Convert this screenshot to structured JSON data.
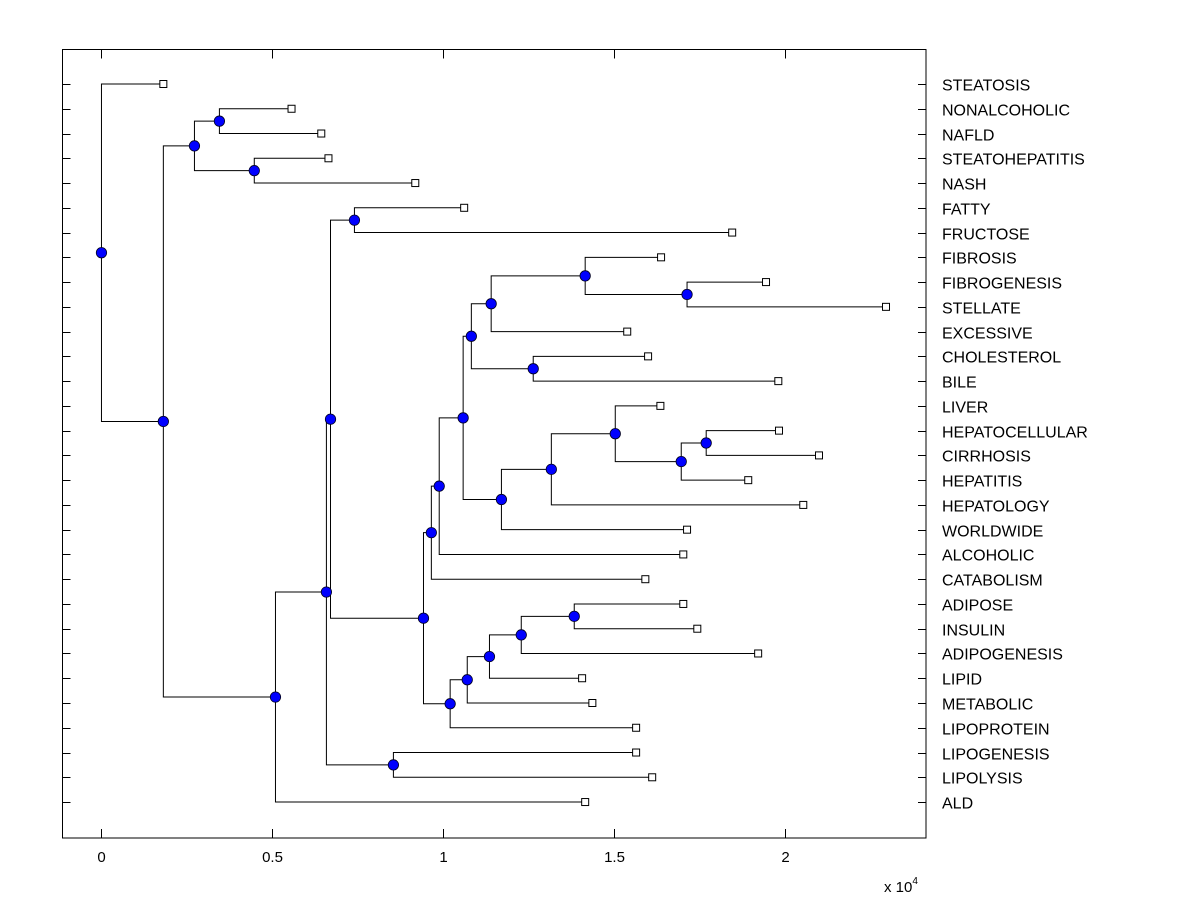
{
  "chart_data": {
    "type": "dendrogram",
    "title": "",
    "xlabel": "",
    "ylabel": "",
    "x_multiplier_label": "x 10",
    "x_multiplier_exponent": "4",
    "xlim": [
      -0.114,
      2.412
    ],
    "xticks": [
      0,
      0.5,
      1,
      1.5,
      2
    ],
    "xtick_labels": [
      "0",
      "0.5",
      "1",
      "1.5",
      "2"
    ],
    "orientation": "left-to-right, labels on right",
    "colors": {
      "node": "#0000ff",
      "line": "#000000",
      "leaf_marker": "#ffffff"
    },
    "leaves": [
      {
        "id": "L0",
        "label": "STEATOSIS",
        "x": 0.181
      },
      {
        "id": "L1",
        "label": "NONALCOHOLIC",
        "x": 0.556
      },
      {
        "id": "L2",
        "label": "NAFLD",
        "x": 0.643
      },
      {
        "id": "L3",
        "label": "STEATOHEPATITIS",
        "x": 0.664
      },
      {
        "id": "L4",
        "label": "NASH",
        "x": 0.918
      },
      {
        "id": "L5",
        "label": "FATTY",
        "x": 1.061
      },
      {
        "id": "L6",
        "label": "FRUCTOSE",
        "x": 1.845
      },
      {
        "id": "L7",
        "label": "FIBROSIS",
        "x": 1.637
      },
      {
        "id": "L8",
        "label": "FIBROGENESIS",
        "x": 1.944
      },
      {
        "id": "L9",
        "label": "STELLATE",
        "x": 2.295
      },
      {
        "id": "L10",
        "label": "EXCESSIVE",
        "x": 1.538
      },
      {
        "id": "L11",
        "label": "CHOLESTEROL",
        "x": 1.599
      },
      {
        "id": "L12",
        "label": "BILE",
        "x": 1.98
      },
      {
        "id": "L13",
        "label": "LIVER",
        "x": 1.635
      },
      {
        "id": "L14",
        "label": "HEPATOCELLULAR",
        "x": 1.982
      },
      {
        "id": "L15",
        "label": "CIRRHOSIS",
        "x": 2.099
      },
      {
        "id": "L16",
        "label": "HEPATITIS",
        "x": 1.892
      },
      {
        "id": "L17",
        "label": "HEPATOLOGY",
        "x": 2.053
      },
      {
        "id": "L18",
        "label": "WORLDWIDE",
        "x": 1.713
      },
      {
        "id": "L19",
        "label": "ALCOHOLIC",
        "x": 1.702
      },
      {
        "id": "L20",
        "label": "CATABOLISM",
        "x": 1.591
      },
      {
        "id": "L21",
        "label": "ADIPOSE",
        "x": 1.702
      },
      {
        "id": "L22",
        "label": "INSULIN",
        "x": 1.743
      },
      {
        "id": "L23",
        "label": "ADIPOGENESIS",
        "x": 1.921
      },
      {
        "id": "L24",
        "label": "LIPID",
        "x": 1.406
      },
      {
        "id": "L25",
        "label": "METABOLIC",
        "x": 1.436
      },
      {
        "id": "L26",
        "label": "LIPOPROTEIN",
        "x": 1.564
      },
      {
        "id": "L27",
        "label": "LIPOGENESIS",
        "x": 1.564
      },
      {
        "id": "L28",
        "label": "LIPOLYSIS",
        "x": 1.611
      },
      {
        "id": "L29",
        "label": "ALD",
        "x": 1.415
      }
    ],
    "nodes": [
      {
        "id": "N_root",
        "x": 0.0,
        "children": [
          "L0",
          "N1"
        ]
      },
      {
        "id": "N1",
        "x": 0.181,
        "children": [
          "N2",
          "N5"
        ]
      },
      {
        "id": "N2",
        "x": 0.272,
        "children": [
          "N3",
          "N4"
        ]
      },
      {
        "id": "N3",
        "x": 0.345,
        "children": [
          "L1",
          "L2"
        ]
      },
      {
        "id": "N4",
        "x": 0.447,
        "children": [
          "L3",
          "L4"
        ]
      },
      {
        "id": "N5",
        "x": 0.509,
        "children": [
          "N6",
          "L29"
        ]
      },
      {
        "id": "N6",
        "x": 0.658,
        "children": [
          "N7",
          "N9"
        ]
      },
      {
        "id": "N7",
        "x": 0.67,
        "children": [
          "N8",
          "N10"
        ]
      },
      {
        "id": "N8",
        "x": 0.74,
        "children": [
          "L5",
          "L6"
        ]
      },
      {
        "id": "N9",
        "x": 0.854,
        "children": [
          "L27",
          "L28"
        ]
      },
      {
        "id": "N10",
        "x": 0.942,
        "children": [
          "N11",
          "N24"
        ]
      },
      {
        "id": "N11",
        "x": 0.965,
        "children": [
          "N12",
          "L20"
        ]
      },
      {
        "id": "N12",
        "x": 0.988,
        "children": [
          "N13",
          "L19"
        ]
      },
      {
        "id": "N13",
        "x": 1.058,
        "children": [
          "N14",
          "N19"
        ]
      },
      {
        "id": "N14",
        "x": 1.082,
        "children": [
          "N15",
          "N18"
        ]
      },
      {
        "id": "N15",
        "x": 1.14,
        "children": [
          "N16",
          "L10"
        ]
      },
      {
        "id": "N16",
        "x": 1.415,
        "children": [
          "L7",
          "N17"
        ]
      },
      {
        "id": "N17",
        "x": 1.713,
        "children": [
          "L8",
          "L9"
        ]
      },
      {
        "id": "N18",
        "x": 1.263,
        "children": [
          "L11",
          "L12"
        ]
      },
      {
        "id": "N19",
        "x": 1.17,
        "children": [
          "N20",
          "L18"
        ]
      },
      {
        "id": "N20",
        "x": 1.316,
        "children": [
          "N21",
          "L17"
        ]
      },
      {
        "id": "N21",
        "x": 1.503,
        "children": [
          "L13",
          "N22"
        ]
      },
      {
        "id": "N22",
        "x": 1.696,
        "children": [
          "N23",
          "L16"
        ]
      },
      {
        "id": "N23",
        "x": 1.769,
        "children": [
          "L14",
          "L15"
        ]
      },
      {
        "id": "N24",
        "x": 1.02,
        "children": [
          "N25",
          "L26"
        ]
      },
      {
        "id": "N25",
        "x": 1.07,
        "children": [
          "N26",
          "L25"
        ]
      },
      {
        "id": "N26",
        "x": 1.135,
        "children": [
          "N27",
          "L24"
        ]
      },
      {
        "id": "N27",
        "x": 1.228,
        "children": [
          "N28",
          "L23"
        ]
      },
      {
        "id": "N28",
        "x": 1.383,
        "children": [
          "L21",
          "L22"
        ]
      }
    ]
  }
}
